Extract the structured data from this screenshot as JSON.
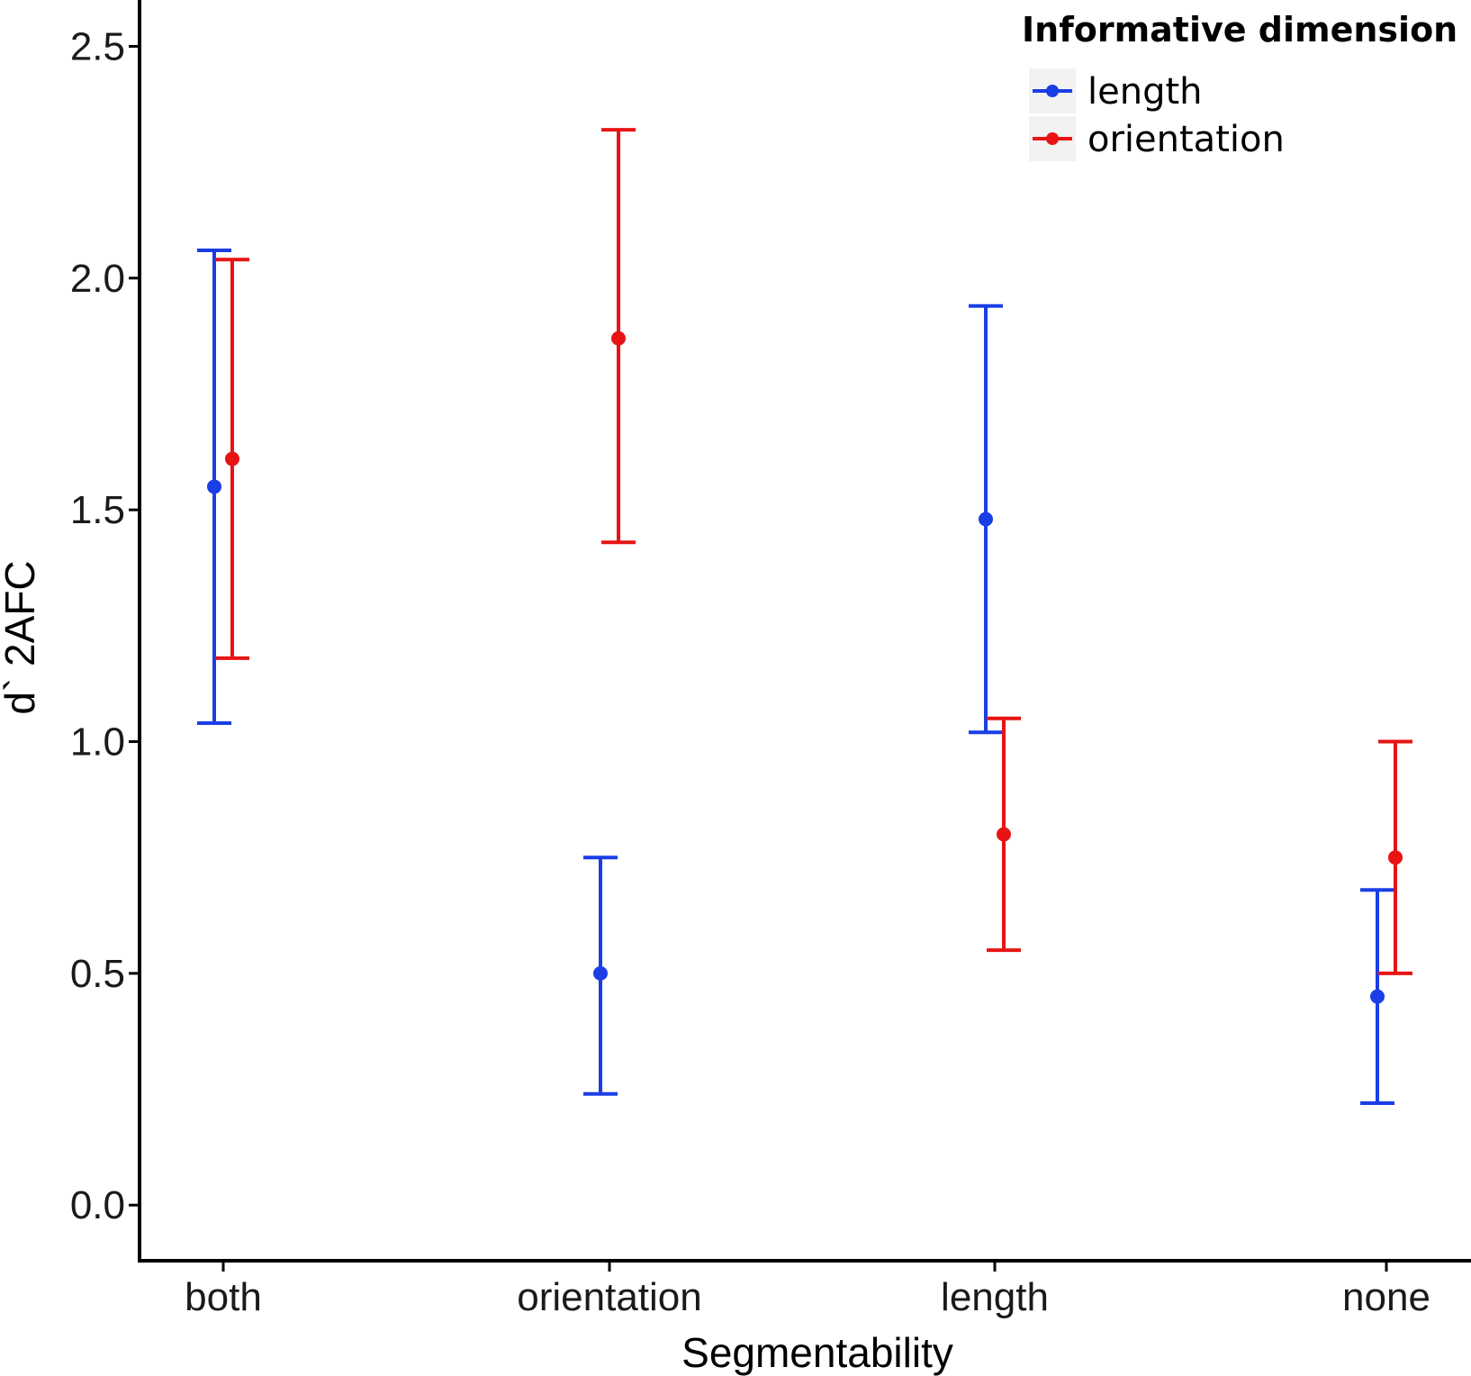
{
  "chart_data": {
    "type": "errorbar",
    "title": "",
    "xlabel": "Segmentability",
    "ylabel": "d` 2AFC",
    "categories": [
      "both",
      "orientation",
      "length",
      "none"
    ],
    "ylim": [
      -0.12,
      2.6
    ],
    "yticks": [
      "0.0",
      "0.5",
      "1.0",
      "1.5",
      "2.0",
      "2.5"
    ],
    "grid": false,
    "legend": {
      "title": "Informative dimension",
      "position": "top-right"
    },
    "series": [
      {
        "name": "length",
        "color": "#1a3ee6",
        "values": [
          1.55,
          0.5,
          1.48,
          0.45
        ],
        "lower": [
          1.04,
          0.24,
          1.02,
          0.22
        ],
        "upper": [
          2.06,
          0.75,
          1.94,
          0.68
        ]
      },
      {
        "name": "orientation",
        "color": "#e81414",
        "values": [
          1.61,
          1.87,
          0.8,
          0.75
        ],
        "lower": [
          1.18,
          1.43,
          0.55,
          0.5
        ],
        "upper": [
          2.04,
          2.32,
          1.05,
          1.0
        ]
      }
    ]
  }
}
